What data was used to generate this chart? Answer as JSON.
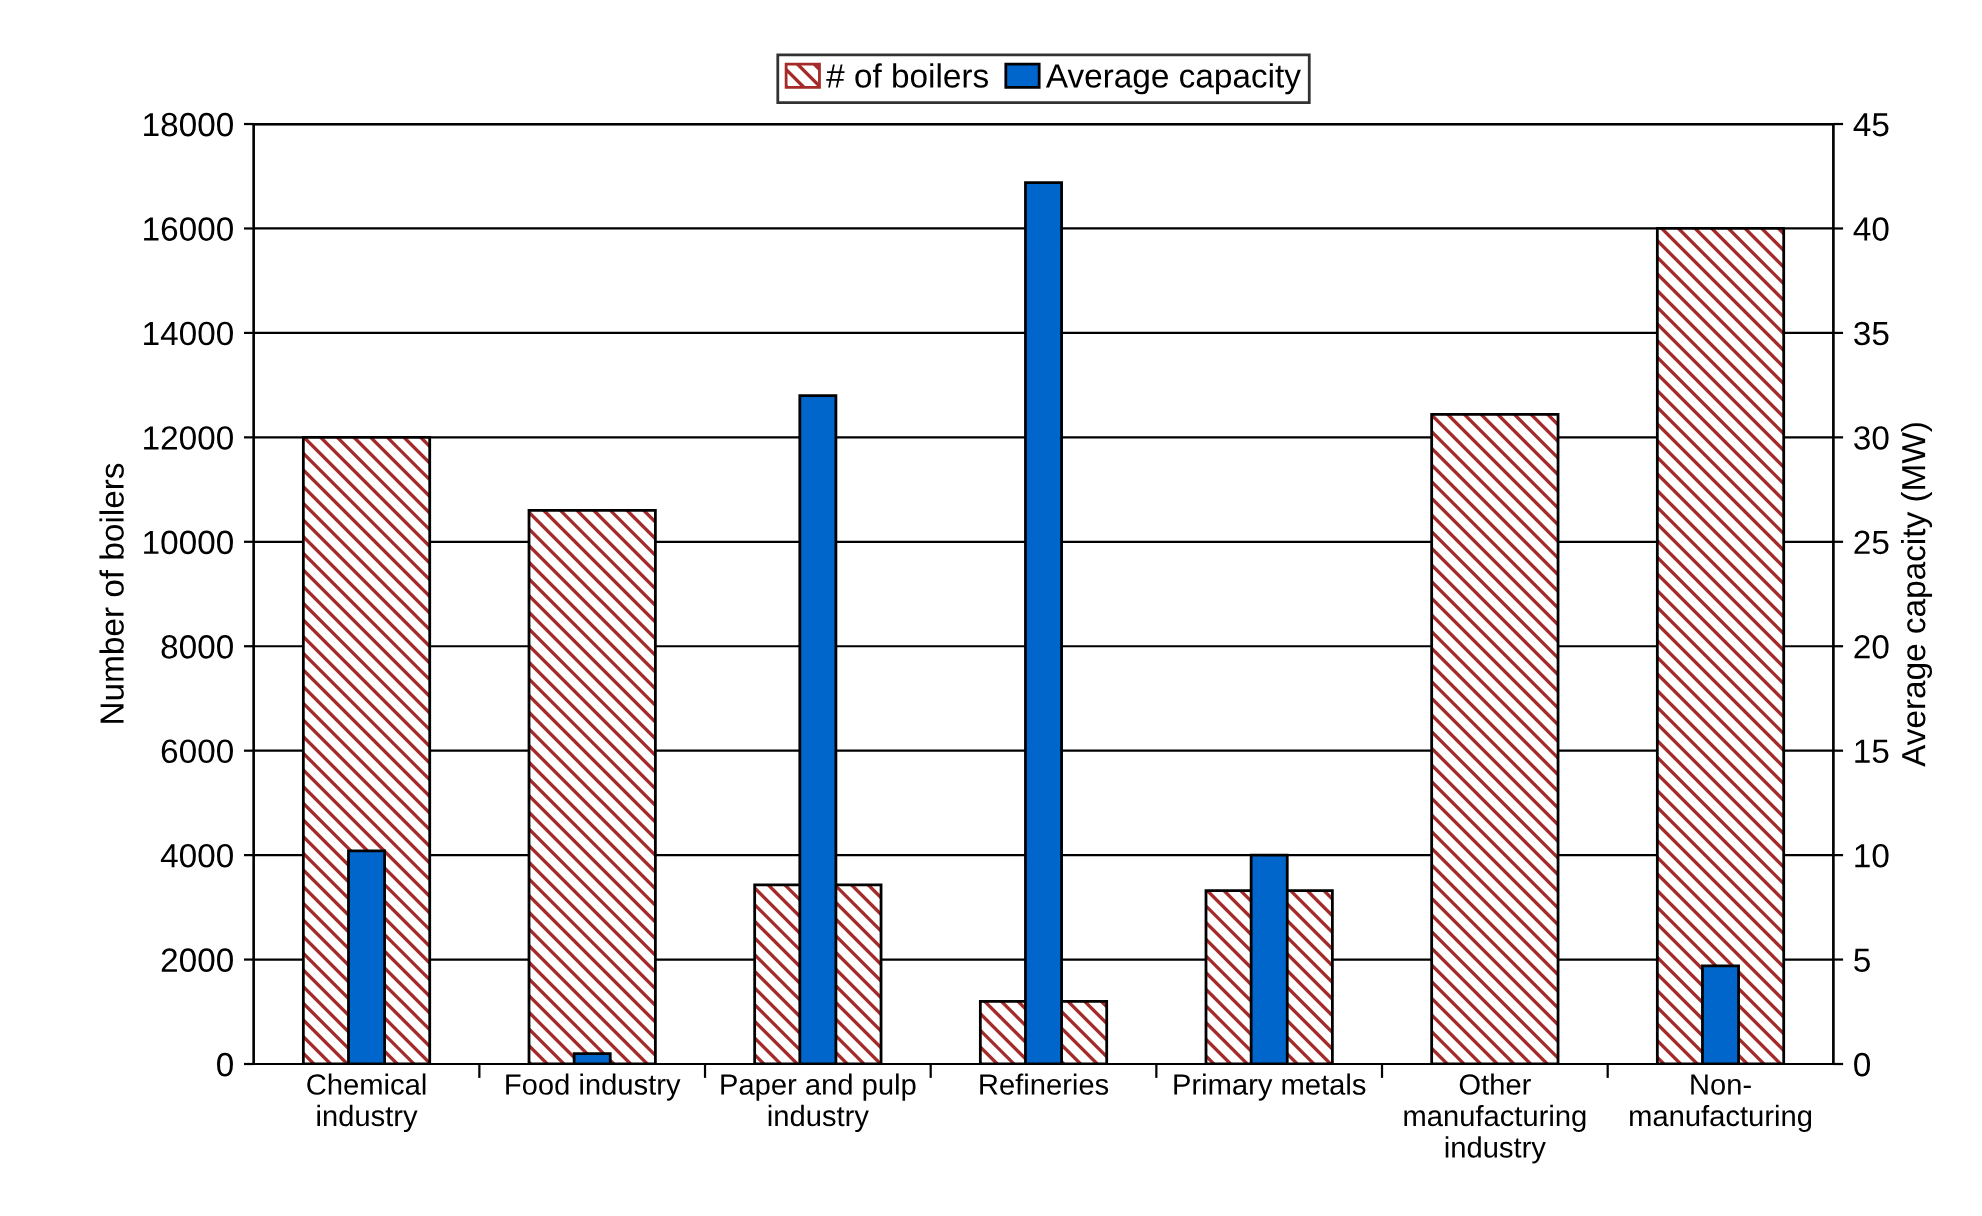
{
  "chart_data": {
    "type": "bar",
    "categories": [
      "Chemical\nindustry",
      "Food industry",
      "Paper and pulp\nindustry",
      "Refineries",
      "Primary metals",
      "Other\nmanufacturing\nindustry",
      "Non-\nmanufacturing"
    ],
    "series": [
      {
        "name": "# of boilers",
        "color": "#a52a2a",
        "values": [
          12000,
          10600,
          3430,
          1200,
          3320,
          12440,
          16000
        ]
      },
      {
        "name": "Average capacity",
        "color": "#0066cc",
        "axis": "y2",
        "values": [
          10.2,
          0.5,
          32.0,
          42.2,
          10.0,
          null,
          4.7
        ]
      }
    ],
    "ylabel": "Number of boilers",
    "y2label": "Average capacity (MW)",
    "ylim": [
      0,
      18000
    ],
    "yticks": [
      0,
      2000,
      4000,
      6000,
      8000,
      10000,
      12000,
      14000,
      16000,
      18000
    ],
    "y2lim": [
      0,
      45
    ],
    "y2ticks": [
      0,
      5,
      10,
      15,
      20,
      25,
      30,
      35,
      40,
      45
    ],
    "grid": "y",
    "legend": "top"
  }
}
